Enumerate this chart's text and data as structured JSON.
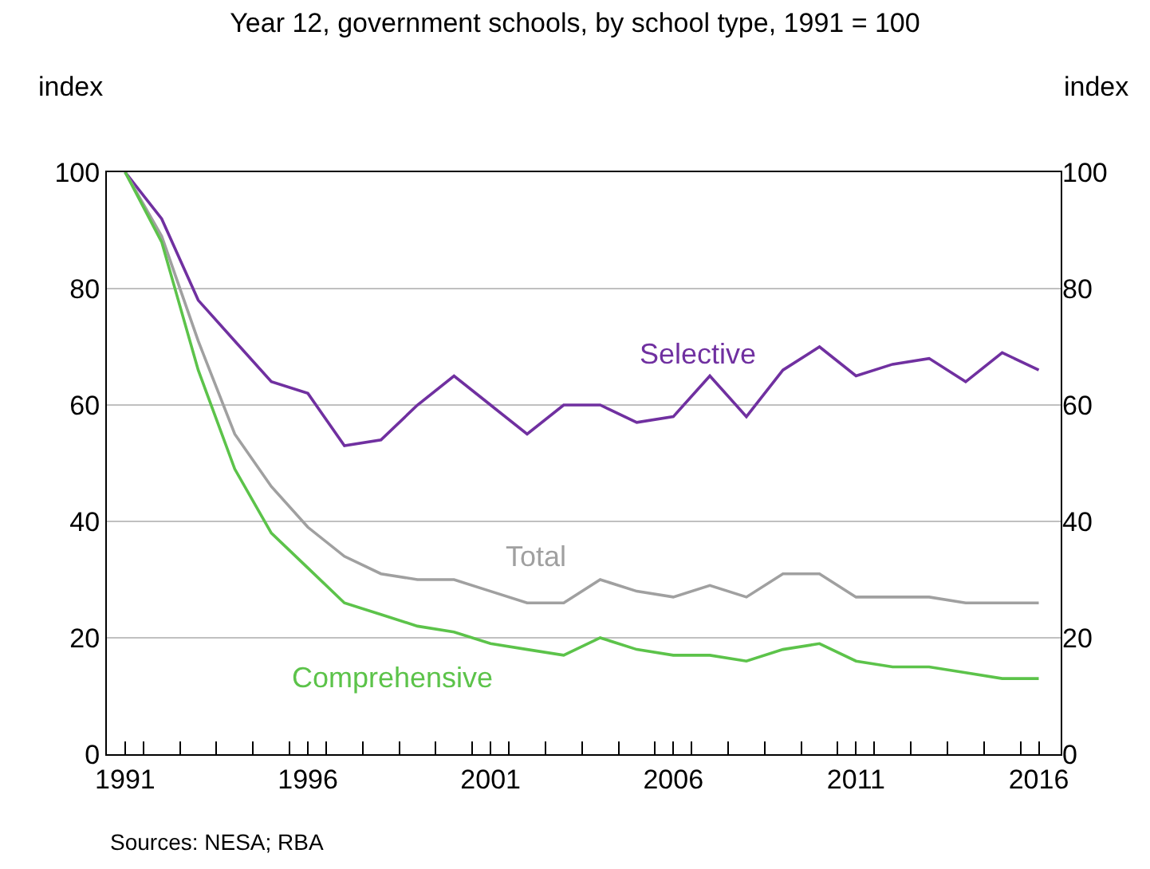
{
  "chart_data": {
    "type": "line",
    "title": "Year 12, government schools, by school type, 1991 = 100",
    "ylabel": "index",
    "y2label": "index",
    "x": [
      1991,
      1992,
      1993,
      1994,
      1995,
      1996,
      1997,
      1998,
      1999,
      2000,
      2001,
      2002,
      2003,
      2004,
      2005,
      2006,
      2007,
      2008,
      2009,
      2010,
      2011,
      2012,
      2013,
      2014,
      2015,
      2016
    ],
    "series": [
      {
        "name": "Selective",
        "color": "#7030a0",
        "values": [
          100,
          92,
          78,
          71,
          64,
          62,
          53,
          54,
          60,
          65,
          60,
          55,
          60,
          60,
          57,
          58,
          65,
          58,
          66,
          70,
          65,
          67,
          68,
          64,
          69,
          66
        ]
      },
      {
        "name": "Total",
        "color": "#a0a0a0",
        "values": [
          100,
          89,
          71,
          55,
          46,
          39,
          34,
          31,
          30,
          30,
          28,
          26,
          26,
          30,
          28,
          27,
          29,
          27,
          31,
          31,
          27,
          27,
          27,
          26,
          26,
          26
        ]
      },
      {
        "name": "Comprehensive",
        "color": "#5cc34a",
        "values": [
          100,
          88,
          66,
          49,
          38,
          32,
          26,
          24,
          22,
          21,
          19,
          18,
          17,
          20,
          18,
          17,
          17,
          16,
          18,
          19,
          16,
          15,
          15,
          14,
          13,
          13
        ]
      }
    ],
    "xlim": [
      1990.5,
      2016.6
    ],
    "xticks": [
      1991,
      1996,
      2001,
      2006,
      2011,
      2016,
      {
        "value": 1991.5,
        "label": null
      },
      {
        "value": 1992.5,
        "label": null
      },
      {
        "value": 1993.5,
        "label": null
      },
      {
        "value": 1994.5,
        "label": null
      },
      {
        "value": 1995.5,
        "label": null
      },
      {
        "value": 1996.5,
        "label": null
      },
      {
        "value": 1997.5,
        "label": null
      },
      {
        "value": 1998.5,
        "label": null
      },
      {
        "value": 1999.5,
        "label": null
      },
      {
        "value": 2000.5,
        "label": null
      },
      {
        "value": 2001.5,
        "label": null
      },
      {
        "value": 2002.5,
        "label": null
      },
      {
        "value": 2003.5,
        "label": null
      },
      {
        "value": 2004.5,
        "label": null
      },
      {
        "value": 2005.5,
        "label": null
      },
      {
        "value": 2006.5,
        "label": null
      },
      {
        "value": 2007.5,
        "label": null
      },
      {
        "value": 2008.5,
        "label": null
      },
      {
        "value": 2009.5,
        "label": null
      },
      {
        "value": 2010.5,
        "label": null
      },
      {
        "value": 2011.5,
        "label": null
      },
      {
        "value": 2012.5,
        "label": null
      },
      {
        "value": 2013.5,
        "label": null
      },
      {
        "value": 2014.5,
        "label": null
      },
      {
        "value": 2015.5,
        "label": null
      }
    ],
    "ylim": [
      0,
      100
    ],
    "yticks": [
      0,
      20,
      40,
      60,
      80,
      100
    ],
    "y2lim": [
      0,
      100
    ],
    "y2ticks": [
      0,
      20,
      40,
      60,
      80,
      100
    ],
    "grid": "y",
    "legend": false,
    "marker": "none",
    "line_style": "solid",
    "annotations": [
      "Sources: NESA; RBA"
    ]
  }
}
